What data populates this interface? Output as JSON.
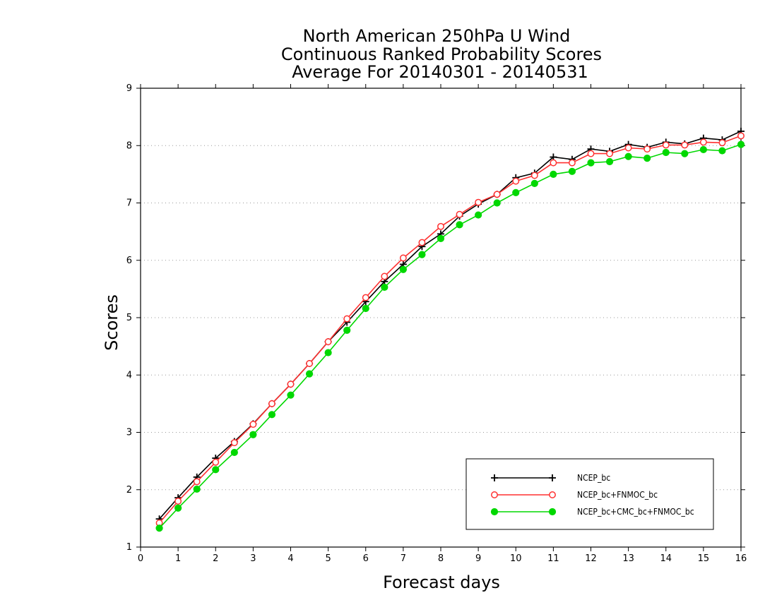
{
  "chart_data": {
    "type": "line",
    "title": [
      "North American 250hPa U Wind",
      "Continuous Ranked Probability Scores",
      "Average For 20140301 - 20140531"
    ],
    "xlabel": "Forecast days",
    "ylabel": "Scores",
    "xlim": [
      0,
      16
    ],
    "ylim": [
      1,
      9
    ],
    "xticks": [
      0,
      1,
      2,
      3,
      4,
      5,
      6,
      7,
      8,
      9,
      10,
      11,
      12,
      13,
      14,
      15,
      16
    ],
    "yticks": [
      1,
      2,
      3,
      4,
      5,
      6,
      7,
      8,
      9
    ],
    "grid": "horizontal-dotted",
    "legend_position": "bottom-right",
    "x": [
      0.5,
      1,
      1.5,
      2,
      2.5,
      3,
      3.5,
      4,
      4.5,
      5,
      5.5,
      6,
      6.5,
      7,
      7.5,
      8,
      8.5,
      9,
      9.5,
      10,
      10.5,
      11,
      11.5,
      12,
      12.5,
      13,
      13.5,
      14,
      14.5,
      15,
      15.5,
      16
    ],
    "series": [
      {
        "name": "NCEP_bc",
        "color": "#000000",
        "marker": "plus",
        "values": [
          1.49,
          1.86,
          2.22,
          2.55,
          2.84,
          3.15,
          3.5,
          3.84,
          4.2,
          4.58,
          4.92,
          5.28,
          5.63,
          5.93,
          6.24,
          6.46,
          6.77,
          6.98,
          7.15,
          7.44,
          7.52,
          7.8,
          7.76,
          7.94,
          7.9,
          8.02,
          7.97,
          8.06,
          8.03,
          8.13,
          8.1,
          8.25
        ]
      },
      {
        "name": "NCEP_bc+FNMOC_bc",
        "color": "#ff3030",
        "marker": "open-circle",
        "values": [
          1.42,
          1.8,
          2.14,
          2.48,
          2.82,
          3.14,
          3.5,
          3.84,
          4.2,
          4.58,
          4.98,
          5.35,
          5.72,
          6.04,
          6.31,
          6.59,
          6.8,
          7.01,
          7.15,
          7.38,
          7.48,
          7.7,
          7.7,
          7.86,
          7.86,
          7.96,
          7.94,
          8.01,
          8.01,
          8.06,
          8.05,
          8.17
        ]
      },
      {
        "name": "NCEP_bc+CMC_bc+FNMOC_bc",
        "color": "#00d800",
        "marker": "filled-circle",
        "values": [
          1.33,
          1.68,
          2.01,
          2.35,
          2.65,
          2.96,
          3.31,
          3.65,
          4.02,
          4.39,
          4.78,
          5.16,
          5.53,
          5.84,
          6.1,
          6.38,
          6.62,
          6.79,
          7.0,
          7.18,
          7.34,
          7.5,
          7.55,
          7.7,
          7.72,
          7.81,
          7.78,
          7.88,
          7.86,
          7.93,
          7.91,
          8.02
        ]
      }
    ]
  }
}
